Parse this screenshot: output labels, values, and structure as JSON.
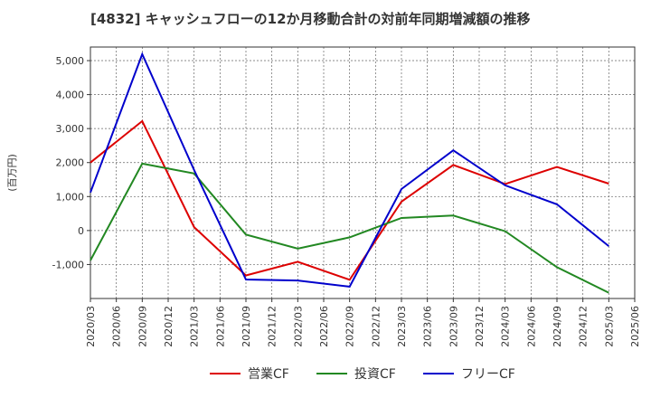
{
  "chart_data": {
    "type": "line",
    "title": "[4832]  キャッシュフローの12か月移動合計の対前年同期増減額の推移",
    "ylabel": "(百万円)",
    "xlabel": "",
    "categories": [
      "2020/03",
      "2020/06",
      "2020/09",
      "2020/12",
      "2021/03",
      "2021/06",
      "2021/09",
      "2021/12",
      "2022/03",
      "2022/06",
      "2022/09",
      "2022/12",
      "2023/03",
      "2023/06",
      "2023/09",
      "2023/12",
      "2024/03",
      "2024/06",
      "2024/09",
      "2024/12",
      "2025/03",
      "2025/06"
    ],
    "ylim": [
      -2000,
      5400
    ],
    "yticks": [
      -1000,
      0,
      1000,
      2000,
      3000,
      4000,
      5000
    ],
    "ytick_labels": [
      "-1,000",
      "0",
      "1,000",
      "2,000",
      "3,000",
      "4,000",
      "5,000"
    ],
    "grid": true,
    "legend_position": "bottom",
    "series": [
      {
        "name": "営業CF",
        "color": "#dd0000",
        "points": [
          {
            "x": "2020/03",
            "y": 2000
          },
          {
            "x": "2020/09",
            "y": 3220
          },
          {
            "x": "2021/03",
            "y": 100
          },
          {
            "x": "2021/09",
            "y": -1320
          },
          {
            "x": "2022/03",
            "y": -920
          },
          {
            "x": "2022/09",
            "y": -1450
          },
          {
            "x": "2023/03",
            "y": 850
          },
          {
            "x": "2023/09",
            "y": 1930
          },
          {
            "x": "2024/03",
            "y": 1370
          },
          {
            "x": "2024/09",
            "y": 1870
          },
          {
            "x": "2025/03",
            "y": 1380
          }
        ]
      },
      {
        "name": "投資CF",
        "color": "#228822",
        "points": [
          {
            "x": "2020/03",
            "y": -880
          },
          {
            "x": "2020/09",
            "y": 1970
          },
          {
            "x": "2021/03",
            "y": 1680
          },
          {
            "x": "2021/09",
            "y": -120
          },
          {
            "x": "2022/03",
            "y": -530
          },
          {
            "x": "2022/09",
            "y": -200
          },
          {
            "x": "2023/03",
            "y": 370
          },
          {
            "x": "2023/09",
            "y": 440
          },
          {
            "x": "2024/03",
            "y": -20
          },
          {
            "x": "2024/09",
            "y": -1080
          },
          {
            "x": "2025/03",
            "y": -1830
          }
        ]
      },
      {
        "name": "フリーCF",
        "color": "#0000cc",
        "points": [
          {
            "x": "2020/03",
            "y": 1120
          },
          {
            "x": "2020/09",
            "y": 5190
          },
          {
            "x": "2021/03",
            "y": 1780
          },
          {
            "x": "2021/09",
            "y": -1440
          },
          {
            "x": "2022/03",
            "y": -1470
          },
          {
            "x": "2022/09",
            "y": -1650
          },
          {
            "x": "2023/03",
            "y": 1220
          },
          {
            "x": "2023/09",
            "y": 2360
          },
          {
            "x": "2024/03",
            "y": 1330
          },
          {
            "x": "2024/09",
            "y": 770
          },
          {
            "x": "2025/03",
            "y": -460
          }
        ]
      }
    ]
  }
}
